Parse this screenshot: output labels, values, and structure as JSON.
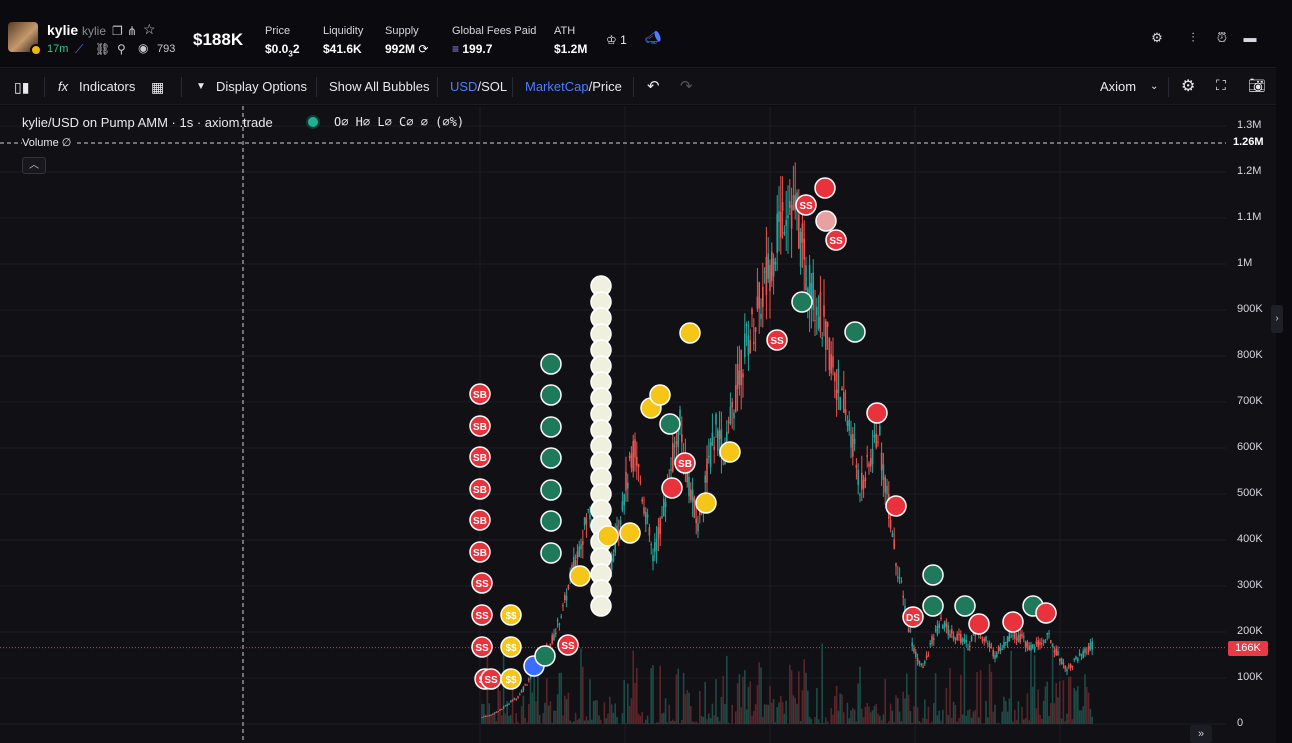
{
  "token": {
    "name": "kylie",
    "ticker": "kylie",
    "age": "17m",
    "views": "793",
    "market_cap": "$188K"
  },
  "stats": [
    {
      "label": "Price",
      "value_main": "$0.0",
      "value_sub": "3",
      "value_tail": "2"
    },
    {
      "label": "Liquidity",
      "value_main": "$41.6K",
      "value_sub": "",
      "value_tail": ""
    },
    {
      "label": "Supply",
      "value_main": "992M",
      "value_sub": "",
      "value_tail": ""
    },
    {
      "label": "Global Fees Paid",
      "value_main": "199.7",
      "value_sub": "",
      "value_tail": ""
    },
    {
      "label": "ATH",
      "value_main": "$1.2M",
      "value_sub": "",
      "value_tail": ""
    }
  ],
  "crown_count": "1",
  "toolbar": {
    "indicators_label": "Indicators",
    "display_options_label": "Display Options",
    "show_bubbles_label": "Show All Bubbles",
    "usd_label": "USD",
    "sol_label": "/SOL",
    "marketcap_label": "MarketCap",
    "price_label": "/Price",
    "source_label": "Axiom"
  },
  "chart": {
    "title": "kylie/USD on Pump AMM · 1s · axiom.trade",
    "ohlc": "O∅ H∅ L∅ C∅ ∅ (∅%)",
    "volume_label": "Volume ∅",
    "crosshair_value": "1.26M",
    "last_price_tag": "166K",
    "y_axis_ticks": [
      "1.3M",
      "1.2M",
      "1.1M",
      "1M",
      "900K",
      "800K",
      "700K",
      "600K",
      "500K",
      "400K",
      "300K",
      "200K",
      "100K",
      "0"
    ],
    "colors": {
      "up": "#26a69a",
      "down": "#ef5350",
      "accent": "#4f7cff",
      "sell": "#e8333c",
      "buy_bubble": "#f5c518",
      "grid": "#1c1c24"
    }
  },
  "chart_data": {
    "type": "line",
    "title": "kylie/USD on Pump AMM · 1s · axiom.trade",
    "ylabel": "",
    "xlabel": "",
    "ylim": [
      0,
      1300000
    ],
    "grid": true,
    "series": [
      {
        "values": [
          15000,
          20000,
          30000,
          45000,
          60000,
          90000,
          130000,
          160000,
          190000,
          250000,
          330000,
          400000,
          470000,
          380000,
          300000,
          420000,
          520000,
          600000,
          480000,
          360000,
          450000,
          560000,
          650000,
          520000,
          430000,
          550000,
          640000,
          590000,
          700000,
          800000,
          860000,
          920000,
          1000000,
          1080000,
          1150000,
          1100000,
          980000,
          930000,
          860000,
          780000,
          700000,
          630000,
          520000,
          560000,
          640000,
          500000,
          360000,
          250000,
          160000,
          120000,
          180000,
          220000,
          200000,
          190000,
          170000,
          210000,
          180000,
          150000,
          175000,
          200000,
          185000,
          165000,
          175000,
          190000,
          150000,
          120000,
          140000,
          155000,
          175000
        ]
      }
    ],
    "markers": [
      "SB",
      "SB",
      "SB",
      "SB",
      "SB",
      "SB",
      "SS",
      "SS",
      "SS",
      "SS",
      "SS",
      "SS",
      "SS",
      "SS",
      "SS",
      "DS"
    ]
  }
}
